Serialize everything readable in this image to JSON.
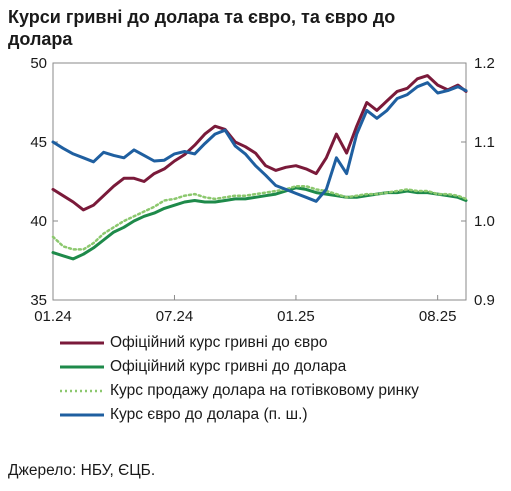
{
  "title_lines": [
    "Курси гривні до долара та євро, та євро до",
    "долара"
  ],
  "source": "Джерело: НБУ, ЄЦБ.",
  "chart_data": {
    "type": "line",
    "title": "Курси гривні до долара та євро, та євро до долара",
    "x_ticks": [
      "01.24",
      "07.24",
      "01.25",
      "08.25"
    ],
    "x_tick_positions": [
      0,
      6,
      12,
      19
    ],
    "x_range": [
      0,
      20.4
    ],
    "y_left": {
      "ticks": [
        "35",
        "40",
        "45",
        "50"
      ],
      "range": [
        35,
        50
      ]
    },
    "y_right": {
      "ticks": [
        "0.9",
        "1.0",
        "1.1",
        "1.2"
      ],
      "range": [
        0.9,
        1.2
      ]
    },
    "legend_position": "bottom",
    "grid": false,
    "series": [
      {
        "name": "Офіційний курс гривні до євро",
        "axis": "left",
        "color": "#7a1a3a",
        "dash": false,
        "x": [
          0,
          0.5,
          1,
          1.5,
          2,
          2.5,
          3,
          3.5,
          4,
          4.5,
          5,
          5.5,
          6,
          6.5,
          7,
          7.5,
          8,
          8.5,
          9,
          9.5,
          10,
          10.5,
          11,
          11.5,
          12,
          12.5,
          13,
          13.5,
          14,
          14.5,
          15,
          15.5,
          16,
          16.5,
          17,
          17.5,
          18,
          18.5,
          19,
          19.5,
          20,
          20.4
        ],
        "values": [
          42.0,
          41.6,
          41.2,
          40.7,
          41.0,
          41.6,
          42.2,
          42.7,
          42.7,
          42.5,
          43.0,
          43.3,
          43.8,
          44.2,
          44.8,
          45.5,
          46.0,
          45.8,
          45.0,
          44.7,
          44.3,
          43.5,
          43.2,
          43.4,
          43.5,
          43.3,
          43.0,
          44.0,
          45.5,
          44.3,
          46.0,
          47.5,
          47.0,
          47.6,
          48.2,
          48.4,
          49.0,
          49.2,
          48.6,
          48.3,
          48.6,
          48.2
        ]
      },
      {
        "name": "Офіційний курс гривні до долара",
        "axis": "left",
        "color": "#1e8a4a",
        "dash": false,
        "x": [
          0,
          0.5,
          1,
          1.5,
          2,
          2.5,
          3,
          3.5,
          4,
          4.5,
          5,
          5.5,
          6,
          6.5,
          7,
          7.5,
          8,
          8.5,
          9,
          9.5,
          10,
          10.5,
          11,
          11.5,
          12,
          12.5,
          13,
          13.5,
          14,
          14.5,
          15,
          15.5,
          16,
          16.5,
          17,
          17.5,
          18,
          18.5,
          19,
          19.5,
          20,
          20.4
        ],
        "values": [
          38.0,
          37.8,
          37.6,
          37.9,
          38.3,
          38.8,
          39.3,
          39.6,
          40.0,
          40.3,
          40.5,
          40.8,
          41.0,
          41.2,
          41.3,
          41.2,
          41.2,
          41.3,
          41.4,
          41.4,
          41.5,
          41.6,
          41.7,
          41.9,
          42.1,
          42.0,
          41.8,
          41.7,
          41.6,
          41.5,
          41.5,
          41.6,
          41.7,
          41.8,
          41.8,
          41.9,
          41.8,
          41.8,
          41.7,
          41.6,
          41.5,
          41.3
        ]
      },
      {
        "name": "Курс продажу долара на готівковому ринку",
        "axis": "left",
        "color": "#8cc86e",
        "dash": true,
        "x": [
          0,
          0.5,
          1,
          1.5,
          2,
          2.5,
          3,
          3.5,
          4,
          4.5,
          5,
          5.5,
          6,
          6.5,
          7,
          7.5,
          8,
          8.5,
          9,
          9.5,
          10,
          10.5,
          11,
          11.5,
          12,
          12.5,
          13,
          13.5,
          14,
          14.5,
          15,
          15.5,
          16,
          16.5,
          17,
          17.5,
          18,
          18.5,
          19,
          19.5,
          20,
          20.4
        ],
        "values": [
          39.0,
          38.4,
          38.2,
          38.2,
          38.6,
          39.2,
          39.6,
          40.0,
          40.3,
          40.6,
          40.9,
          41.3,
          41.4,
          41.6,
          41.7,
          41.5,
          41.4,
          41.5,
          41.6,
          41.6,
          41.7,
          41.8,
          41.9,
          42.0,
          42.2,
          42.2,
          42.0,
          41.9,
          41.7,
          41.5,
          41.6,
          41.7,
          41.7,
          41.8,
          41.9,
          42.0,
          41.9,
          41.9,
          41.7,
          41.7,
          41.6,
          41.4
        ]
      },
      {
        "name": "Курс євро до долара (п. ш.)",
        "axis": "right",
        "color": "#1f5fa0",
        "dash": false,
        "x": [
          0,
          0.5,
          1,
          1.5,
          2,
          2.5,
          3,
          3.5,
          4,
          4.5,
          5,
          5.5,
          6,
          6.5,
          7,
          7.5,
          8,
          8.5,
          9,
          9.5,
          10,
          10.5,
          11,
          11.5,
          12,
          12.5,
          13,
          13.5,
          14,
          14.5,
          15,
          15.5,
          16,
          16.5,
          17,
          17.5,
          18,
          18.5,
          19,
          19.5,
          20,
          20.4
        ],
        "values": [
          1.1,
          1.092,
          1.085,
          1.08,
          1.075,
          1.087,
          1.083,
          1.08,
          1.09,
          1.083,
          1.076,
          1.077,
          1.085,
          1.088,
          1.085,
          1.098,
          1.11,
          1.115,
          1.095,
          1.085,
          1.07,
          1.058,
          1.045,
          1.04,
          1.035,
          1.03,
          1.025,
          1.04,
          1.08,
          1.06,
          1.11,
          1.14,
          1.13,
          1.14,
          1.155,
          1.16,
          1.17,
          1.175,
          1.162,
          1.165,
          1.17,
          1.165
        ]
      }
    ]
  },
  "legend": [
    {
      "label": "Офіційний курс гривні до євро",
      "color": "#7a1a3a",
      "dash": false
    },
    {
      "label": "Офіційний курс гривні до долара",
      "color": "#1e8a4a",
      "dash": false
    },
    {
      "label": "Курс продажу долара на готівковому ринку",
      "color": "#8cc86e",
      "dash": true
    },
    {
      "label": "Курс євро до долара (п. ш.)",
      "color": "#1f5fa0",
      "dash": false
    }
  ]
}
